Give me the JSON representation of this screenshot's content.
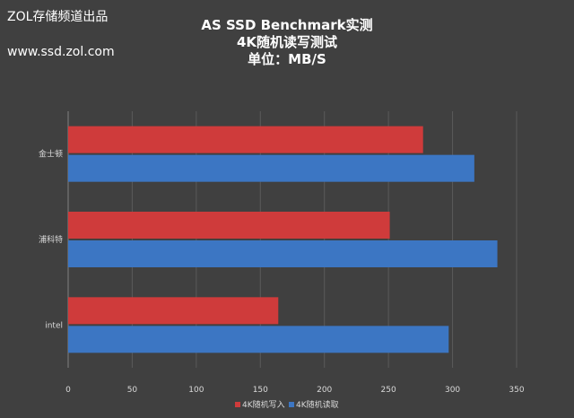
{
  "watermark": {
    "line1": "ZOL存储频道出品",
    "line2": "www.ssd.zol.com"
  },
  "chart_data": {
    "type": "bar",
    "orientation": "horizontal",
    "title": "AS SSD Benchmark实测",
    "subtitle": "4K随机读写测试",
    "unit_label": "单位：MB/S",
    "categories": [
      "金士顿",
      "浦科特",
      "intel"
    ],
    "series": [
      {
        "name": "4K随机写入",
        "values": [
          277,
          251,
          164
        ],
        "color": "#cf3b3b"
      },
      {
        "name": "4K随机读取",
        "values": [
          317,
          335,
          297
        ],
        "color": "#3c76c3"
      }
    ],
    "xticks": [
      0,
      50,
      100,
      150,
      200,
      250,
      300,
      350
    ],
    "xlim": [
      0,
      350
    ],
    "grid": true,
    "legend_position": "bottom",
    "background": "#404040"
  }
}
